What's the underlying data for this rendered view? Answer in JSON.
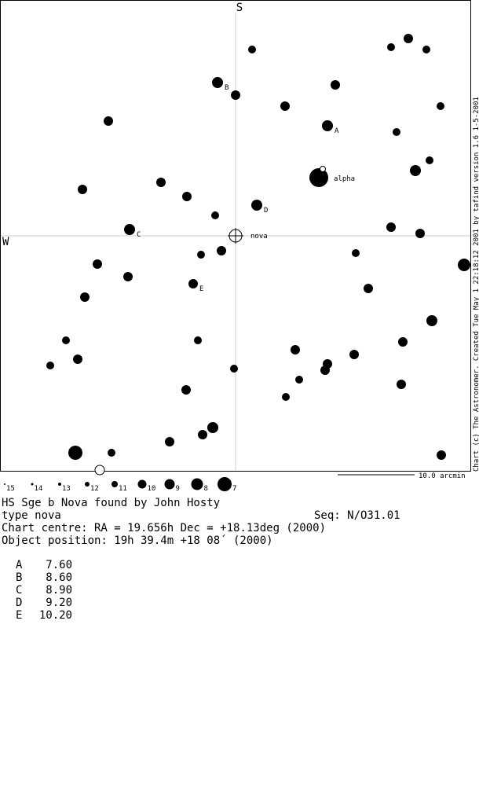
{
  "chart": {
    "north": "S",
    "west": "W",
    "labels": {
      "A": "A",
      "B": "B",
      "C": "C",
      "D": "D",
      "E": "E",
      "alpha": "alpha",
      "nova": "nova"
    },
    "credit": "Chart (c) The Astronomer. Created Tue May  1 22:18:12 2001 by tafind version 1.6 1-5-2001",
    "scale": "10.0 arcmin",
    "legend": [
      "15",
      "14",
      "13",
      "12",
      "11",
      "10",
      "9",
      "8",
      "7"
    ]
  },
  "header": {
    "title": "HS Sge  b  Nova found by John Hosty",
    "type": "type nova",
    "seq": "Seq: N/O31.01",
    "centre": "Chart centre: RA = 19.656h  Dec = +18.13deg (2000)",
    "position": "Object position: 19h 39.4m  +18 08´  (2000)"
  },
  "table": {
    "rows": [
      [
        "A",
        "7.60"
      ],
      [
        "B",
        "8.60"
      ],
      [
        "C",
        "8.90"
      ],
      [
        "D",
        "9.20"
      ],
      [
        "E",
        "10.20"
      ]
    ]
  }
}
